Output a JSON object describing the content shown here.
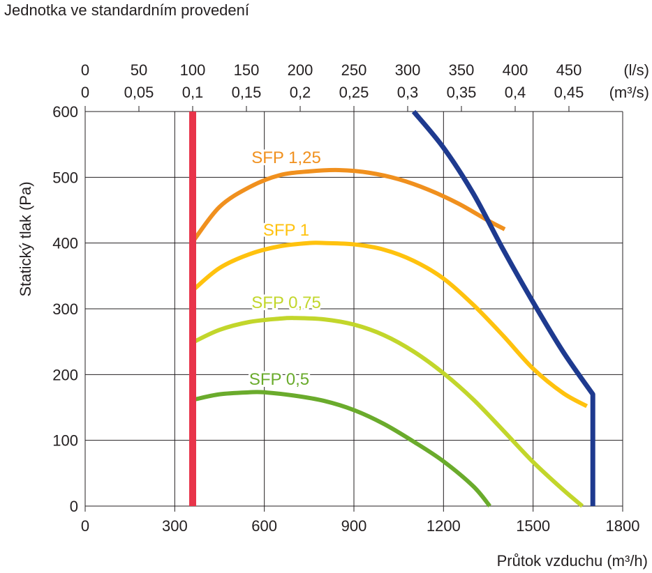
{
  "title": "Jednotka ve standardním provedení",
  "chart_data": {
    "type": "line",
    "xlabel": "Průtok vzduchu  (m³/h)",
    "ylabel": "Statický tlak (Pa)",
    "xlim": [
      0,
      1800
    ],
    "ylim": [
      0,
      600
    ],
    "x_ticks": [
      "0",
      "300",
      "600",
      "900",
      "1200",
      "1500",
      "1800"
    ],
    "y_ticks": [
      "0",
      "100",
      "200",
      "300",
      "400",
      "500",
      "600"
    ],
    "top_axis_ls": {
      "unit": "(l/s)",
      "ticks": [
        "0",
        "50",
        "100",
        "150",
        "200",
        "250",
        "300",
        "350",
        "400",
        "450"
      ]
    },
    "top_axis_m3s": {
      "unit": "(m³/s)",
      "ticks": [
        "0",
        "0,05",
        "0,1",
        "0,15",
        "0,2",
        "0,25",
        "0,3",
        "0,35",
        "0,4",
        "0,45"
      ]
    },
    "grid": true,
    "series": [
      {
        "name": "SFP 1,25",
        "color": "#f0901e",
        "points": [
          [
            365,
            405
          ],
          [
            450,
            455
          ],
          [
            550,
            485
          ],
          [
            650,
            503
          ],
          [
            750,
            509
          ],
          [
            850,
            511
          ],
          [
            950,
            507
          ],
          [
            1050,
            497
          ],
          [
            1150,
            481
          ],
          [
            1250,
            460
          ],
          [
            1350,
            434
          ],
          [
            1405,
            421
          ]
        ]
      },
      {
        "name": "SFP 1",
        "color": "#ffc20e",
        "points": [
          [
            365,
            330
          ],
          [
            450,
            362
          ],
          [
            550,
            383
          ],
          [
            650,
            395
          ],
          [
            750,
            400
          ],
          [
            800,
            400
          ],
          [
            900,
            398
          ],
          [
            1000,
            390
          ],
          [
            1100,
            373
          ],
          [
            1200,
            346
          ],
          [
            1300,
            306
          ],
          [
            1400,
            259
          ],
          [
            1500,
            209
          ],
          [
            1600,
            172
          ],
          [
            1680,
            152
          ]
        ]
      },
      {
        "name": "SFP 0,75",
        "color": "#c2d62b",
        "points": [
          [
            365,
            250
          ],
          [
            450,
            268
          ],
          [
            550,
            280
          ],
          [
            650,
            285
          ],
          [
            700,
            286
          ],
          [
            800,
            284
          ],
          [
            900,
            276
          ],
          [
            1000,
            260
          ],
          [
            1100,
            235
          ],
          [
            1200,
            202
          ],
          [
            1300,
            162
          ],
          [
            1400,
            115
          ],
          [
            1500,
            67
          ],
          [
            1600,
            25
          ],
          [
            1665,
            0
          ]
        ]
      },
      {
        "name": "SFP 0,5",
        "color": "#6aab2c",
        "points": [
          [
            365,
            162
          ],
          [
            450,
            170
          ],
          [
            550,
            173
          ],
          [
            600,
            173
          ],
          [
            700,
            168
          ],
          [
            800,
            160
          ],
          [
            900,
            146
          ],
          [
            1000,
            125
          ],
          [
            1100,
            98
          ],
          [
            1200,
            68
          ],
          [
            1300,
            30
          ],
          [
            1355,
            0
          ]
        ]
      },
      {
        "name": "",
        "color": "#1e3a8f",
        "points": [
          [
            1100,
            600
          ],
          [
            1200,
            545
          ],
          [
            1300,
            475
          ],
          [
            1400,
            390
          ],
          [
            1500,
            310
          ],
          [
            1600,
            235
          ],
          [
            1700,
            170
          ],
          [
            1700,
            0
          ]
        ]
      },
      {
        "name": "",
        "color": "#e8344a",
        "points": [
          [
            360,
            0
          ],
          [
            360,
            600
          ]
        ]
      }
    ]
  }
}
